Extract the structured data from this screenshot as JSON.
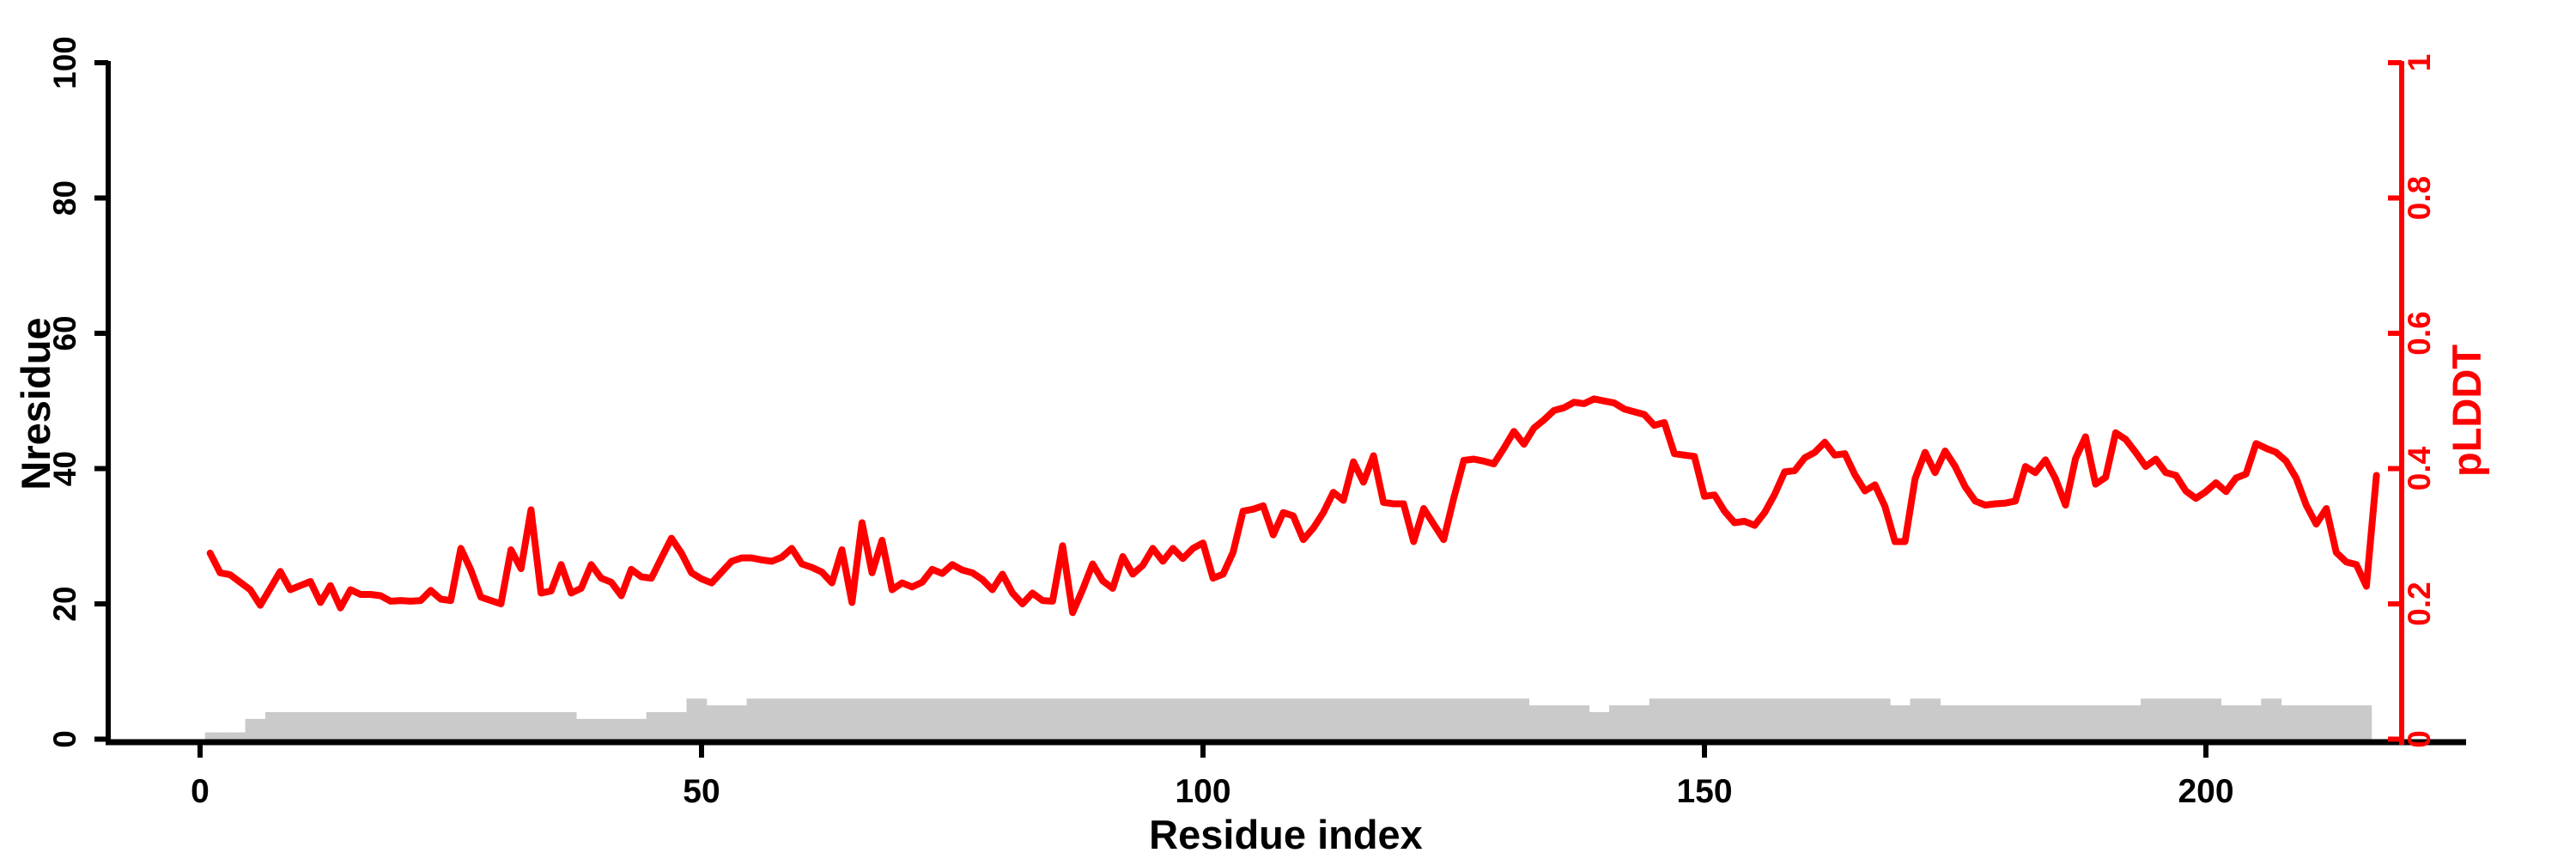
{
  "figure": {
    "background": "#ffffff",
    "axis_color": "#000000",
    "accent_red": "#FF0000",
    "bar_gray": "#CACACA"
  },
  "chart_data": {
    "type": "line",
    "title": "",
    "xlabel": "Residue index",
    "grid": false,
    "legend": null,
    "x_axis": {
      "label": "Residue index",
      "ticks": [
        0,
        50,
        100,
        150,
        200
      ],
      "range_displayed": [
        0,
        219
      ]
    },
    "left_axis": {
      "label": "Nresidue",
      "range": [
        0,
        100
      ],
      "ticks": [
        0,
        20,
        40,
        60,
        80,
        100
      ],
      "color": "#000000"
    },
    "right_axis": {
      "label": "pLDDT",
      "range": [
        0,
        1
      ],
      "tick_labels": [
        "0",
        "0.2",
        "0.4",
        "0.6",
        "0.8",
        "1"
      ],
      "tick_values": [
        0,
        0.2,
        0.4,
        0.6,
        0.8,
        1
      ],
      "color": "#FF0000"
    },
    "series": [
      {
        "name": "pLDDT",
        "type": "line",
        "axis": "right",
        "color": "#FF0000",
        "x_start": 1,
        "values": [
          0.275,
          0.246,
          0.243,
          0.232,
          0.221,
          0.198,
          0.223,
          0.248,
          0.221,
          0.227,
          0.233,
          0.202,
          0.227,
          0.194,
          0.221,
          0.214,
          0.214,
          0.212,
          0.204,
          0.205,
          0.204,
          0.205,
          0.22,
          0.207,
          0.205,
          0.282,
          0.25,
          0.21,
          0.205,
          0.2,
          0.28,
          0.252,
          0.339,
          0.216,
          0.219,
          0.258,
          0.216,
          0.223,
          0.258,
          0.238,
          0.232,
          0.212,
          0.251,
          0.24,
          0.238,
          0.268,
          0.297,
          0.275,
          0.246,
          0.237,
          0.231,
          0.247,
          0.263,
          0.268,
          0.268,
          0.265,
          0.263,
          0.269,
          0.282,
          0.259,
          0.254,
          0.247,
          0.231,
          0.28,
          0.202,
          0.32,
          0.246,
          0.294,
          0.221,
          0.231,
          0.225,
          0.232,
          0.251,
          0.245,
          0.258,
          0.25,
          0.246,
          0.236,
          0.221,
          0.244,
          0.216,
          0.2,
          0.216,
          0.205,
          0.204,
          0.286,
          0.187,
          0.221,
          0.259,
          0.234,
          0.223,
          0.27,
          0.244,
          0.257,
          0.282,
          0.263,
          0.282,
          0.267,
          0.282,
          0.29,
          0.238,
          0.244,
          0.276,
          0.337,
          0.34,
          0.345,
          0.302,
          0.335,
          0.33,
          0.295,
          0.312,
          0.335,
          0.365,
          0.353,
          0.41,
          0.38,
          0.419,
          0.35,
          0.348,
          0.348,
          0.292,
          0.341,
          0.318,
          0.295,
          0.356,
          0.412,
          0.414,
          0.411,
          0.407,
          0.43,
          0.455,
          0.436,
          0.46,
          0.472,
          0.486,
          0.49,
          0.498,
          0.496,
          0.503,
          0.5,
          0.497,
          0.488,
          0.484,
          0.48,
          0.464,
          0.468,
          0.422,
          0.42,
          0.418,
          0.359,
          0.361,
          0.337,
          0.32,
          0.322,
          0.316,
          0.335,
          0.362,
          0.395,
          0.397,
          0.416,
          0.424,
          0.439,
          0.42,
          0.422,
          0.391,
          0.367,
          0.376,
          0.344,
          0.292,
          0.292,
          0.385,
          0.424,
          0.394,
          0.426,
          0.403,
          0.373,
          0.352,
          0.346,
          0.348,
          0.349,
          0.352,
          0.403,
          0.394,
          0.413,
          0.385,
          0.346,
          0.415,
          0.447,
          0.377,
          0.387,
          0.453,
          0.443,
          0.424,
          0.403,
          0.414,
          0.394,
          0.39,
          0.367,
          0.356,
          0.366,
          0.379,
          0.366,
          0.386,
          0.392,
          0.437,
          0.43,
          0.424,
          0.411,
          0.386,
          0.346,
          0.318,
          0.341,
          0.276,
          0.262,
          0.258,
          0.226,
          0.39
        ]
      },
      {
        "name": "Nresidue",
        "type": "bar",
        "axis": "left",
        "color": "#CACACA",
        "x_start": 1,
        "values": [
          1,
          1,
          1,
          1,
          3,
          3,
          4,
          4,
          4,
          4,
          4,
          4,
          4,
          4,
          4,
          4,
          4,
          4,
          4,
          4,
          4,
          4,
          4,
          4,
          4,
          4,
          4,
          4,
          4,
          4,
          4,
          4,
          4,
          4,
          4,
          4,
          4,
          3,
          3,
          3,
          3,
          3,
          3,
          3,
          4,
          4,
          4,
          4,
          6,
          6,
          5,
          5,
          5,
          5,
          6,
          6,
          6,
          6,
          6,
          6,
          6,
          6,
          6,
          6,
          6,
          6,
          6,
          6,
          6,
          6,
          6,
          6,
          6,
          6,
          6,
          6,
          6,
          6,
          6,
          6,
          6,
          6,
          6,
          6,
          6,
          6,
          6,
          6,
          6,
          6,
          6,
          6,
          6,
          6,
          6,
          6,
          6,
          6,
          6,
          6,
          6,
          6,
          6,
          6,
          6,
          6,
          6,
          6,
          6,
          6,
          6,
          6,
          6,
          6,
          6,
          6,
          6,
          6,
          6,
          6,
          6,
          6,
          6,
          6,
          6,
          6,
          6,
          6,
          6,
          6,
          6,
          6,
          5,
          5,
          5,
          5,
          5,
          5,
          4,
          4,
          5,
          5,
          5,
          5,
          6,
          6,
          6,
          6,
          6,
          6,
          6,
          6,
          6,
          6,
          6,
          6,
          6,
          6,
          6,
          6,
          6,
          6,
          6,
          6,
          6,
          6,
          6,
          6,
          5,
          5,
          6,
          6,
          6,
          5,
          5,
          5,
          5,
          5,
          5,
          5,
          5,
          5,
          5,
          5,
          5,
          5,
          5,
          5,
          5,
          5,
          5,
          5,
          5,
          6,
          6,
          6,
          6,
          6,
          6,
          6,
          6,
          5,
          5,
          5,
          5,
          6,
          6,
          5,
          5,
          5,
          5,
          5,
          5,
          5,
          5,
          5
        ]
      }
    ]
  }
}
